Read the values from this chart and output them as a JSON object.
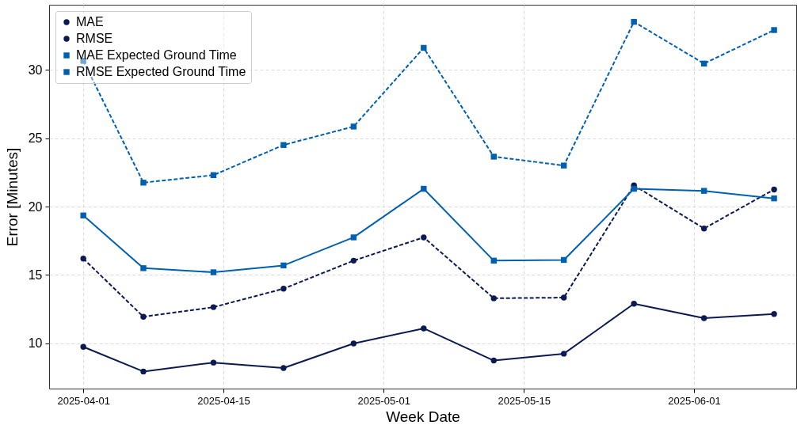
{
  "chart_data": {
    "type": "line",
    "xlabel": "Week Date",
    "ylabel": "Error [Minutes]",
    "x": [
      "2025-04-01",
      "2025-04-07",
      "2025-04-14",
      "2025-04-21",
      "2025-04-28",
      "2025-05-05",
      "2025-05-12",
      "2025-05-19",
      "2025-05-26",
      "2025-06-02",
      "2025-06-09"
    ],
    "series": [
      {
        "name": "MAE",
        "color": "#0b1a52",
        "marker": "circle",
        "line_style": "solid",
        "values": [
          9.75,
          7.95,
          8.6,
          8.2,
          10.0,
          11.1,
          8.75,
          9.25,
          12.9,
          11.85,
          12.15
        ]
      },
      {
        "name": "RMSE",
        "color": "#0b1a52",
        "marker": "circle",
        "line_style": "dashed",
        "values": [
          16.2,
          11.95,
          12.65,
          14.0,
          16.05,
          17.75,
          13.3,
          13.35,
          21.55,
          18.4,
          21.25
        ]
      },
      {
        "name": "MAE Expected Ground Time",
        "color": "#0060b0",
        "marker": "square",
        "line_style": "solid",
        "values": [
          19.35,
          15.5,
          15.2,
          15.7,
          17.75,
          21.3,
          16.05,
          16.1,
          21.3,
          21.15,
          20.6
        ]
      },
      {
        "name": "RMSE Expected Ground Time",
        "color": "#0060b0",
        "marker": "square",
        "line_style": "dashed",
        "values": [
          30.65,
          21.75,
          22.3,
          24.5,
          25.85,
          31.6,
          23.65,
          23.0,
          33.5,
          30.45,
          32.9
        ]
      }
    ],
    "xlim": [
      "2025-03-28T14:00",
      "2025-06-11T05:00"
    ],
    "xticks": [
      "2025-04-01",
      "2025-04-15",
      "2025-05-01",
      "2025-05-15",
      "2025-06-01"
    ],
    "ylim": [
      6.7,
      34.75
    ],
    "yticks": [
      10,
      15,
      20,
      25,
      30
    ],
    "grid": true,
    "legend": "top left"
  }
}
